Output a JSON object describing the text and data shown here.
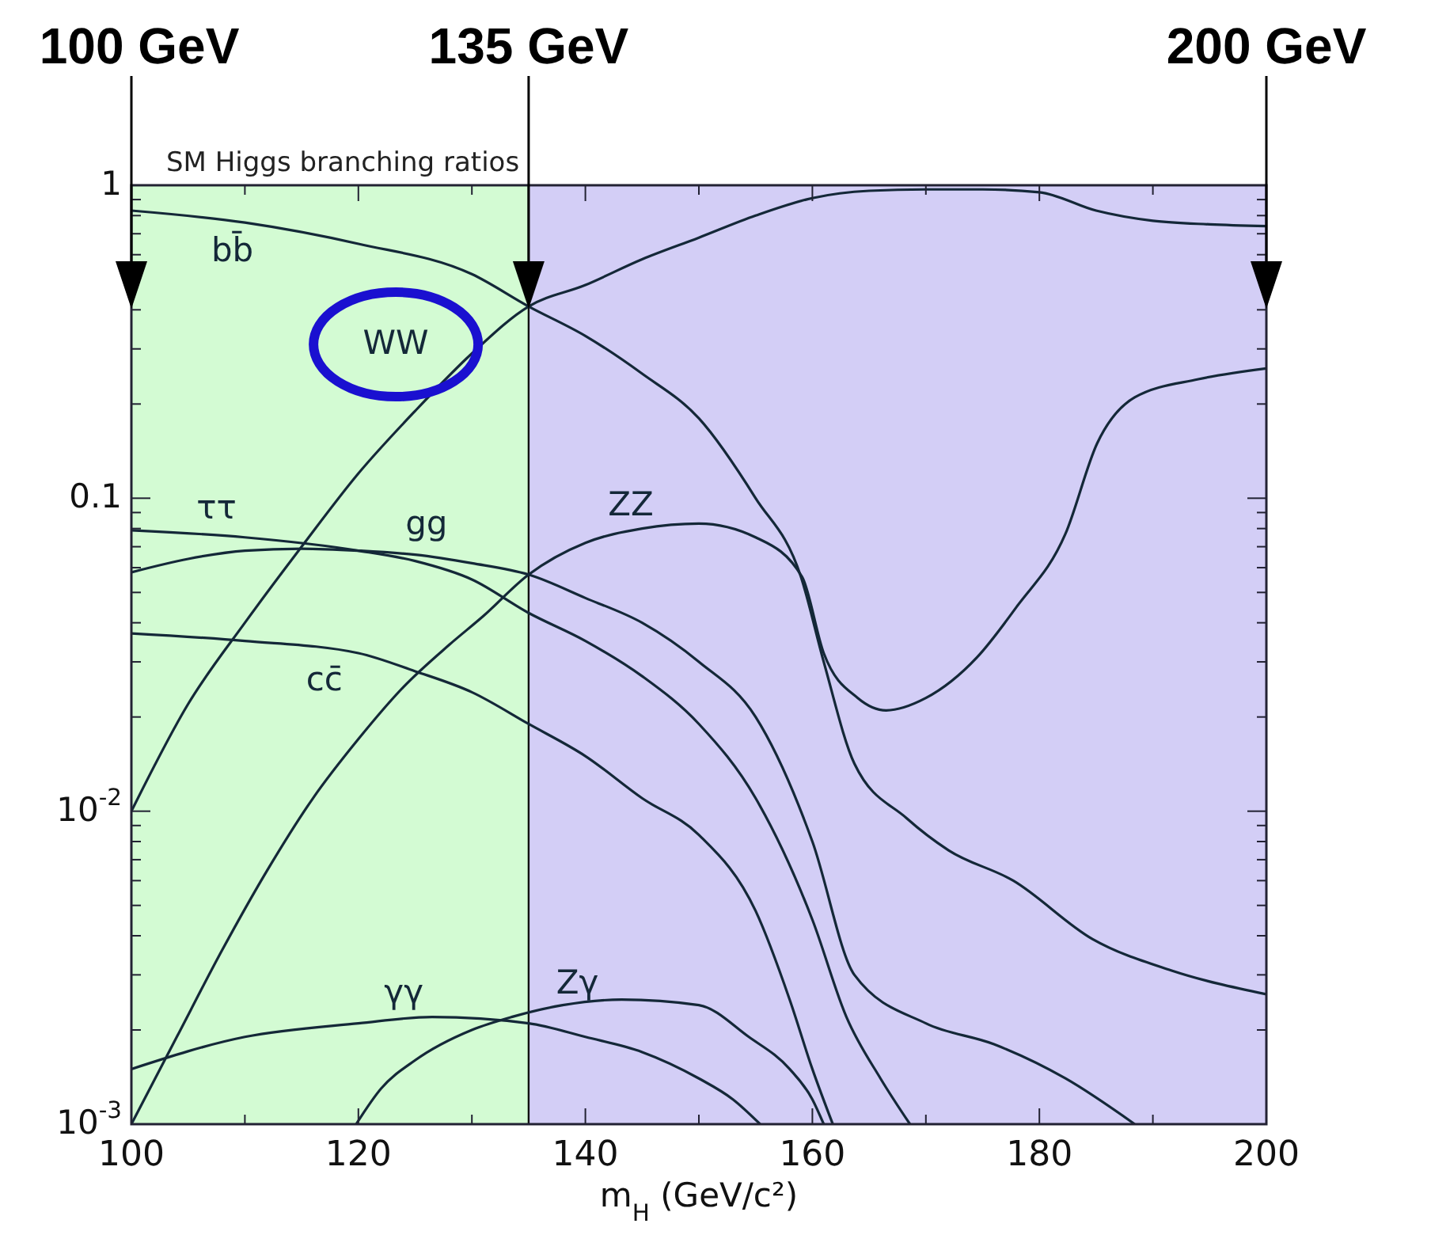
{
  "chart_data": {
    "type": "line",
    "title": "SM Higgs branching ratios",
    "xlabel": "m$_{H}$  (GeV/c²)",
    "log": "y",
    "xlim": [
      100,
      200
    ],
    "ylim": [
      0.001,
      1
    ],
    "xticks": [
      100,
      {
        "value": 110,
        "label": null
      },
      120,
      {
        "value": 130,
        "label": null
      },
      140,
      {
        "value": 150,
        "label": null
      },
      160,
      {
        "value": 170,
        "label": null
      },
      180,
      {
        "value": 190,
        "label": null
      },
      200
    ],
    "yticks": [
      {
        "value": 0.001,
        "label": "10$^{-3}$"
      },
      {
        "value": 0.002,
        "label": null
      },
      {
        "value": 0.003,
        "label": null
      },
      {
        "value": 0.004,
        "label": null
      },
      {
        "value": 0.005,
        "label": null
      },
      {
        "value": 0.006,
        "label": null
      },
      {
        "value": 0.007,
        "label": null
      },
      {
        "value": 0.008,
        "label": null
      },
      {
        "value": 0.009,
        "label": null
      },
      {
        "value": 0.01,
        "label": "10$^{-2}$"
      },
      {
        "value": 0.02,
        "label": null
      },
      {
        "value": 0.03,
        "label": null
      },
      {
        "value": 0.04,
        "label": null
      },
      {
        "value": 0.05,
        "label": null
      },
      {
        "value": 0.06,
        "label": null
      },
      {
        "value": 0.07,
        "label": null
      },
      {
        "value": 0.08,
        "label": null
      },
      {
        "value": 0.09,
        "label": null
      },
      0.1,
      {
        "value": 0.2,
        "label": null
      },
      {
        "value": 0.3,
        "label": null
      },
      {
        "value": 0.4,
        "label": null
      },
      {
        "value": 0.5,
        "label": null
      },
      {
        "value": 0.6,
        "label": null
      },
      {
        "value": 0.7,
        "label": null
      },
      {
        "value": 0.8,
        "label": null
      },
      {
        "value": 0.9,
        "label": null
      },
      1
    ],
    "grid": false,
    "line_style": "solid",
    "marker": "none",
    "bands": [
      {
        "axis": "x",
        "from": 100,
        "to": 135,
        "color": "#d3fbd3"
      },
      {
        "axis": "x",
        "from": 135,
        "to": 200,
        "color": "#d3cef6"
      }
    ],
    "annotations": [
      {
        "text": "100 GeV",
        "x": 100
      },
      {
        "text": "135 GeV",
        "x": 135
      },
      {
        "text": "200 GeV",
        "x": 200
      }
    ],
    "ref_lines": [
      {
        "axis": "x",
        "value": 135,
        "color": "#111111"
      }
    ],
    "series": [
      {
        "name": "bb̄",
        "color": "#142838",
        "x": [
          100,
          110,
          120,
          130,
          135,
          140,
          145,
          150,
          155,
          159,
          161,
          163.7,
          168.3,
          172,
          177.7,
          184.7,
          191.6,
          200
        ],
        "values": [
          0.83,
          0.76,
          0.65,
          0.52,
          0.41,
          0.33,
          0.25,
          0.18,
          0.1,
          0.056,
          0.03,
          0.0142,
          0.0095,
          0.0075,
          0.006,
          0.0039,
          0.0031,
          0.0026
        ]
      },
      {
        "name": "WW",
        "color": "#142838",
        "x": [
          100,
          105,
          110,
          115,
          120,
          125,
          130,
          135,
          140,
          145,
          150,
          155,
          160,
          165,
          170,
          175,
          180,
          185,
          190,
          195,
          200
        ],
        "values": [
          0.01,
          0.022,
          0.04,
          0.07,
          0.12,
          0.19,
          0.29,
          0.41,
          0.48,
          0.58,
          0.68,
          0.8,
          0.91,
          0.96,
          0.97,
          0.97,
          0.95,
          0.83,
          0.77,
          0.75,
          0.74
        ]
      },
      {
        "name": "ττ",
        "color": "#142838",
        "x": [
          100,
          110,
          120,
          125,
          130,
          135,
          140,
          145,
          150,
          155,
          160,
          163,
          166,
          168.6
        ],
        "values": [
          0.079,
          0.075,
          0.068,
          0.063,
          0.055,
          0.043,
          0.035,
          0.027,
          0.019,
          0.011,
          0.0045,
          0.0022,
          0.0014,
          0.001
        ]
      },
      {
        "name": "gg",
        "color": "#142838",
        "x": [
          100,
          105,
          110,
          115,
          120,
          125,
          130,
          135,
          140,
          145,
          150,
          155,
          160,
          163.7,
          170,
          176,
          182.3,
          188.4
        ],
        "values": [
          0.058,
          0.064,
          0.068,
          0.069,
          0.068,
          0.066,
          0.062,
          0.057,
          0.048,
          0.04,
          0.03,
          0.02,
          0.008,
          0.003,
          0.0021,
          0.0018,
          0.0014,
          0.001
        ]
      },
      {
        "name": "cc̄",
        "color": "#142838",
        "x": [
          100,
          110,
          120,
          125,
          130,
          135,
          140,
          145,
          150,
          155,
          158,
          160,
          161.8
        ],
        "values": [
          0.037,
          0.035,
          0.032,
          0.028,
          0.024,
          0.019,
          0.015,
          0.011,
          0.0084,
          0.0048,
          0.0025,
          0.0015,
          0.001
        ]
      },
      {
        "name": "ZZ",
        "color": "#142838",
        "x": [
          100,
          104,
          108,
          112,
          116,
          120,
          124,
          128,
          131,
          135,
          140,
          145,
          150,
          155,
          159.1,
          161,
          164,
          166.5,
          170,
          174.5,
          178,
          182.3,
          185.1,
          188.4,
          194,
          200
        ],
        "values": [
          0.001,
          0.0019,
          0.0036,
          0.0065,
          0.011,
          0.017,
          0.025,
          0.034,
          0.042,
          0.057,
          0.072,
          0.08,
          0.083,
          0.075,
          0.056,
          0.032,
          0.023,
          0.021,
          0.023,
          0.031,
          0.045,
          0.077,
          0.15,
          0.21,
          0.24,
          0.26
        ]
      },
      {
        "name": "γγ",
        "color": "#142838",
        "x": [
          100,
          110,
          120,
          126.5,
          135,
          140,
          145,
          150,
          153,
          155.4
        ],
        "values": [
          0.0015,
          0.0019,
          0.0021,
          0.0022,
          0.0021,
          0.0019,
          0.0017,
          0.0014,
          0.0012,
          0.001
        ]
      },
      {
        "name": "Zγ",
        "color": "#142838",
        "x": [
          119.8,
          122,
          125,
          130,
          133.5,
          138,
          143.2,
          150,
          154.4,
          158,
          160,
          161
        ],
        "values": [
          0.001,
          0.0013,
          0.0016,
          0.002,
          0.0022,
          0.0024,
          0.0025,
          0.0024,
          0.0019,
          0.0015,
          0.0012,
          0.001
        ]
      }
    ]
  }
}
